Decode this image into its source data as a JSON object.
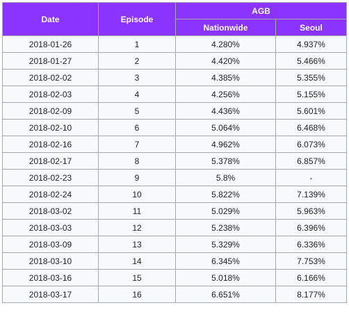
{
  "table": {
    "headers": {
      "date": "Date",
      "episode": "Episode",
      "group": "AGB",
      "nationwide": "Nationwide",
      "seoul": "Seoul"
    },
    "rows": [
      {
        "date": "2018-01-26",
        "episode": "1",
        "nationwide": "4.280%",
        "seoul": "4.937%"
      },
      {
        "date": "2018-01-27",
        "episode": "2",
        "nationwide": "4.420%",
        "seoul": "5.466%"
      },
      {
        "date": "2018-02-02",
        "episode": "3",
        "nationwide": "4.385%",
        "seoul": "5.355%"
      },
      {
        "date": "2018-02-03",
        "episode": "4",
        "nationwide": "4.256%",
        "seoul": "5.155%"
      },
      {
        "date": "2018-02-09",
        "episode": "5",
        "nationwide": "4.436%",
        "seoul": "5.601%"
      },
      {
        "date": "2018-02-10",
        "episode": "6",
        "nationwide": "5.064%",
        "seoul": "6.468%"
      },
      {
        "date": "2018-02-16",
        "episode": "7",
        "nationwide": "4.962%",
        "seoul": "6.073%"
      },
      {
        "date": "2018-02-17",
        "episode": "8",
        "nationwide": "5.378%",
        "seoul": "6.857%"
      },
      {
        "date": "2018-02-23",
        "episode": "9",
        "nationwide": "5.8%",
        "seoul": "-"
      },
      {
        "date": "2018-02-24",
        "episode": "10",
        "nationwide": "5.822%",
        "seoul": "7.139%"
      },
      {
        "date": "2018-03-02",
        "episode": "11",
        "nationwide": "5.029%",
        "seoul": "5.963%"
      },
      {
        "date": "2018-03-03",
        "episode": "12",
        "nationwide": "5.238%",
        "seoul": "6.396%"
      },
      {
        "date": "2018-03-09",
        "episode": "13",
        "nationwide": "5.329%",
        "seoul": "6.336%"
      },
      {
        "date": "2018-03-10",
        "episode": "14",
        "nationwide": "6.345%",
        "seoul": "7.753%"
      },
      {
        "date": "2018-03-16",
        "episode": "15",
        "nationwide": "5.018%",
        "seoul": "6.166%"
      },
      {
        "date": "2018-03-17",
        "episode": "16",
        "nationwide": "6.651%",
        "seoul": "8.177%"
      }
    ]
  },
  "colors": {
    "header_bg": "#8b33ff",
    "header_text": "#ffffff",
    "cell_bg": "#f8f9fa",
    "border": "#a2a9b1"
  }
}
